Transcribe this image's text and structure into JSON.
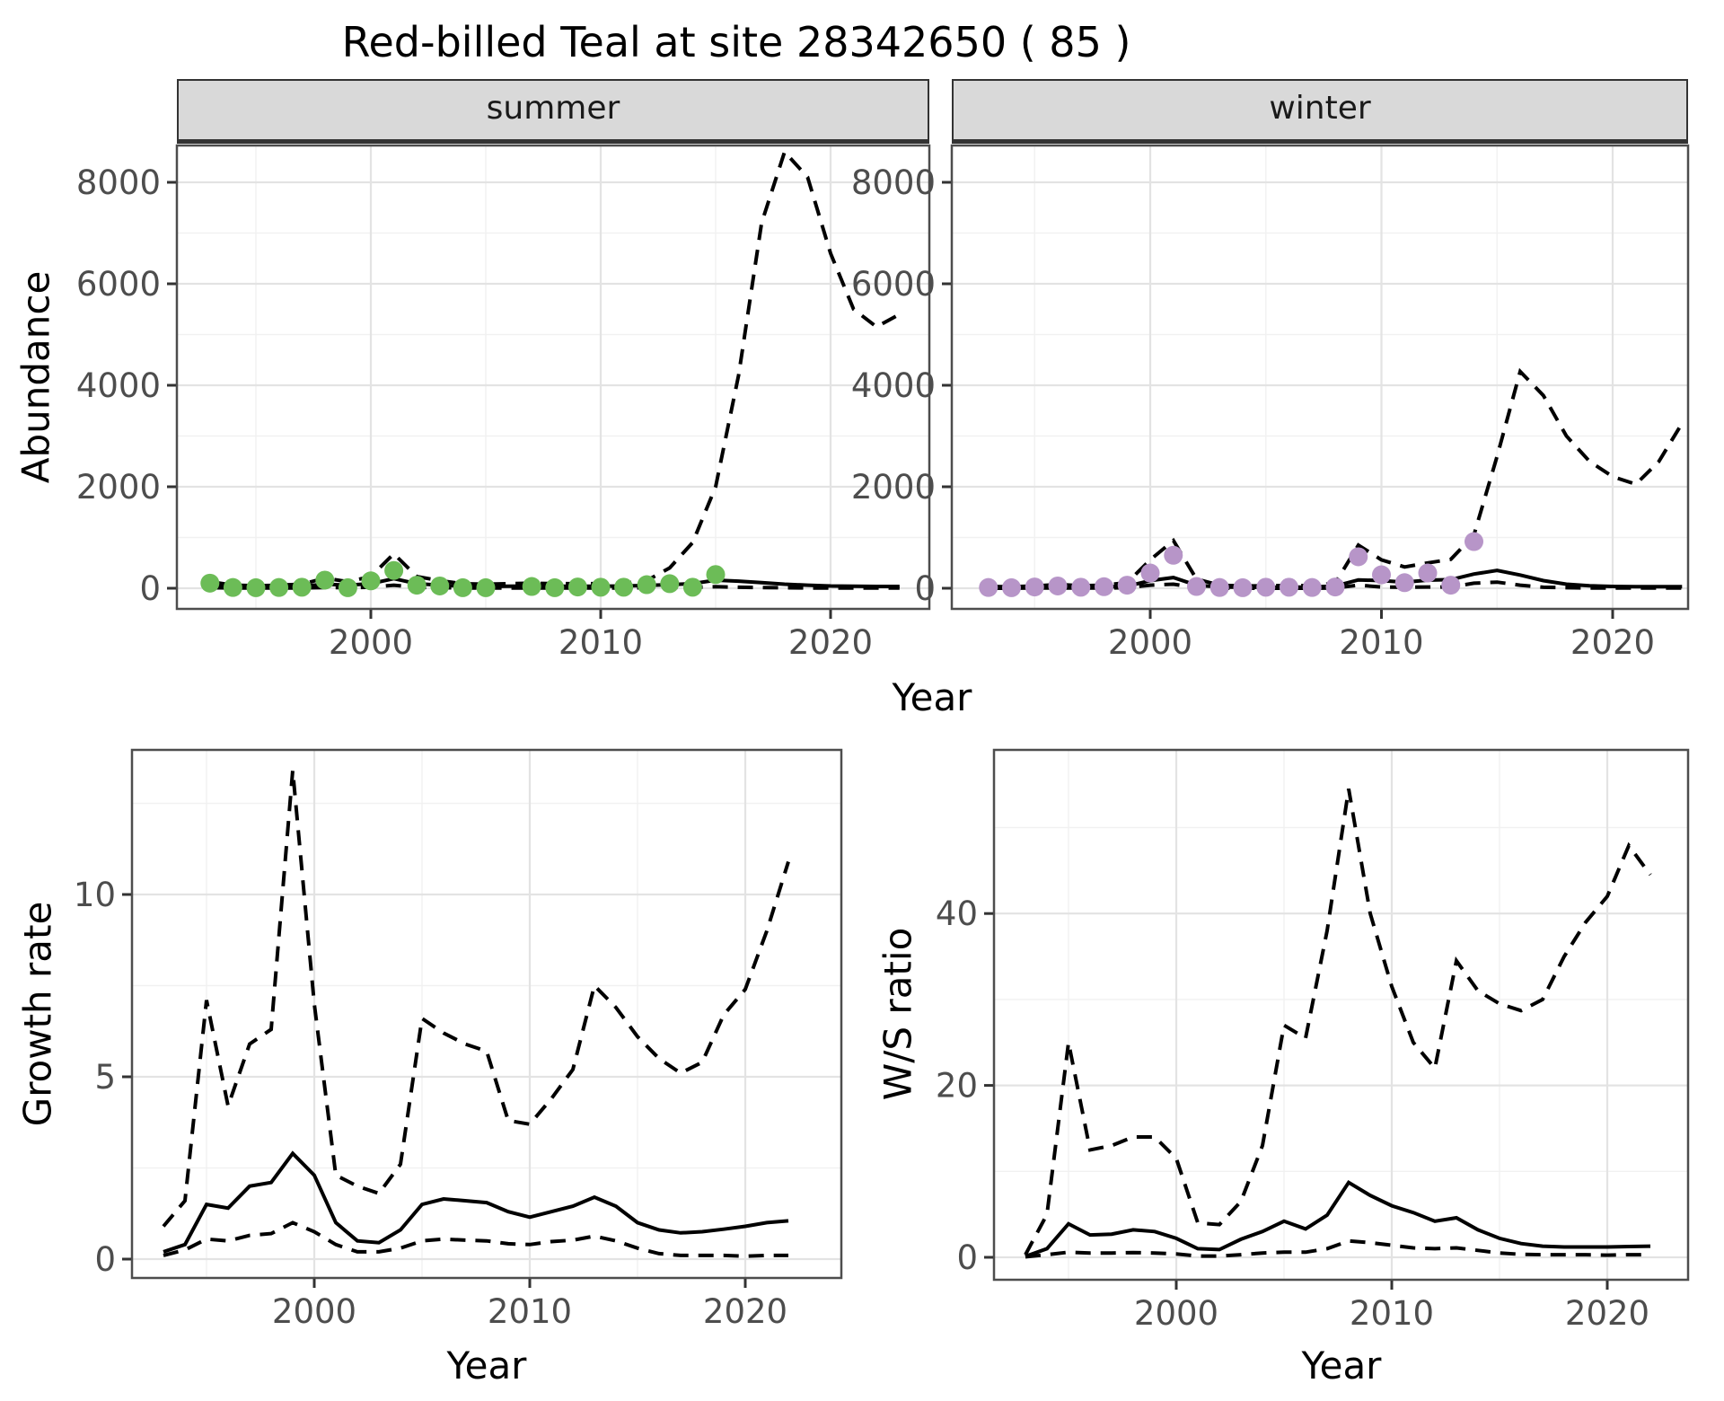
{
  "title": "Red-billed Teal at site 28342650 ( 85 )",
  "colors": {
    "summer_points": "#6CBC57",
    "winter_points": "#B795C8",
    "line": "#000000",
    "strip_bg": "#D9D9D9",
    "panel_border": "#4D4D4D",
    "grid_major": "#E3E3E3",
    "grid_minor": "#F1F1F1",
    "tick_label": "#4D4D4D"
  },
  "chart_data": [
    {
      "id": "abundance-summer",
      "type": "line",
      "facet_label": "summer",
      "xlabel": "Year",
      "ylabel": "Abundance",
      "x_ticks": [
        2000,
        2010,
        2020
      ],
      "y_ticks": [
        0,
        2000,
        4000,
        6000,
        8000
      ],
      "xlim": [
        1991.6,
        2024.3
      ],
      "ylim": [
        -400,
        8750
      ],
      "grid": true,
      "legend": "none",
      "series": [
        {
          "name": "upper-credible-interval",
          "style": "dashed",
          "x": [
            1993,
            1994,
            1995,
            1996,
            1997,
            1998,
            1999,
            2000,
            2001,
            2002,
            2003,
            2004,
            2005,
            2006,
            2007,
            2008,
            2009,
            2010,
            2011,
            2012,
            2013,
            2014,
            2015,
            2016,
            2017,
            2018,
            2019,
            2020,
            2021,
            2022,
            2023
          ],
          "y": [
            130,
            60,
            50,
            60,
            80,
            200,
            130,
            230,
            680,
            230,
            150,
            90,
            80,
            90,
            100,
            90,
            90,
            90,
            100,
            150,
            400,
            900,
            2000,
            4200,
            7200,
            8600,
            8100,
            6600,
            5500,
            5150,
            5400
          ]
        },
        {
          "name": "median-fit",
          "style": "solid",
          "x": [
            1993,
            1994,
            1995,
            1996,
            1997,
            1998,
            1999,
            2000,
            2001,
            2002,
            2003,
            2004,
            2005,
            2006,
            2007,
            2008,
            2009,
            2010,
            2011,
            2012,
            2013,
            2014,
            2015,
            2016,
            2017,
            2018,
            2019,
            2020,
            2021,
            2022,
            2023
          ],
          "y": [
            60,
            30,
            25,
            30,
            40,
            80,
            60,
            90,
            190,
            90,
            60,
            40,
            35,
            40,
            45,
            40,
            40,
            40,
            45,
            55,
            70,
            90,
            160,
            140,
            110,
            80,
            60,
            45,
            40,
            35,
            35
          ]
        },
        {
          "name": "lower-credible-interval",
          "style": "dashed",
          "x": [
            1993,
            1994,
            1995,
            1996,
            1997,
            1998,
            1999,
            2000,
            2001,
            2002,
            2003,
            2004,
            2005,
            2006,
            2007,
            2008,
            2009,
            2010,
            2011,
            2012,
            2013,
            2014,
            2015,
            2016,
            2017,
            2018,
            2019,
            2020,
            2021,
            2022,
            2023
          ],
          "y": [
            10,
            5,
            5,
            5,
            5,
            15,
            10,
            20,
            60,
            20,
            10,
            5,
            5,
            5,
            5,
            5,
            5,
            5,
            5,
            10,
            15,
            20,
            30,
            20,
            15,
            10,
            5,
            5,
            5,
            5,
            5
          ]
        },
        {
          "name": "observed-counts",
          "style": "points",
          "color": "#6CBC57",
          "x": [
            1993,
            1994,
            1995,
            1996,
            1997,
            1998,
            1999,
            2000,
            2001,
            2002,
            2003,
            2004,
            2005,
            2007,
            2008,
            2009,
            2010,
            2011,
            2012,
            2013,
            2014,
            2015
          ],
          "y": [
            100,
            15,
            10,
            15,
            20,
            160,
            10,
            145,
            350,
            60,
            45,
            10,
            10,
            35,
            10,
            25,
            20,
            20,
            70,
            90,
            20,
            270
          ]
        }
      ]
    },
    {
      "id": "abundance-winter",
      "type": "line",
      "facet_label": "winter",
      "xlabel": "Year",
      "ylabel": "Abundance",
      "x_ticks": [
        2000,
        2010,
        2020
      ],
      "y_ticks": [
        0,
        2000,
        4000,
        6000,
        8000
      ],
      "xlim": [
        1991.6,
        2024.3
      ],
      "ylim": [
        -400,
        8750
      ],
      "grid": true,
      "legend": "none",
      "series": [
        {
          "name": "upper-credible-interval",
          "style": "dashed",
          "x": [
            1993,
            1994,
            1995,
            1996,
            1997,
            1998,
            1999,
            2000,
            2001,
            2002,
            2003,
            2004,
            2005,
            2006,
            2007,
            2008,
            2009,
            2010,
            2011,
            2012,
            2013,
            2014,
            2015,
            2016,
            2017,
            2018,
            2019,
            2020,
            2021,
            2022,
            2023
          ],
          "y": [
            35,
            30,
            45,
            75,
            50,
            60,
            110,
            560,
            940,
            180,
            60,
            45,
            50,
            55,
            50,
            100,
            850,
            560,
            420,
            500,
            570,
            1050,
            2600,
            4270,
            3800,
            3000,
            2500,
            2200,
            2050,
            2500,
            3250
          ]
        },
        {
          "name": "median-fit",
          "style": "solid",
          "x": [
            1993,
            1994,
            1995,
            1996,
            1997,
            1998,
            1999,
            2000,
            2001,
            2002,
            2003,
            2004,
            2005,
            2006,
            2007,
            2008,
            2009,
            2010,
            2011,
            2012,
            2013,
            2014,
            2015,
            2016,
            2017,
            2018,
            2019,
            2020,
            2021,
            2022,
            2023
          ],
          "y": [
            10,
            10,
            15,
            20,
            20,
            25,
            40,
            150,
            210,
            60,
            25,
            20,
            20,
            20,
            25,
            45,
            165,
            150,
            120,
            160,
            170,
            280,
            350,
            260,
            150,
            80,
            50,
            35,
            30,
            30,
            30
          ]
        },
        {
          "name": "lower-credible-interval",
          "style": "dashed",
          "x": [
            1993,
            1994,
            1995,
            1996,
            1997,
            1998,
            1999,
            2000,
            2001,
            2002,
            2003,
            2004,
            2005,
            2006,
            2007,
            2008,
            2009,
            2010,
            2011,
            2012,
            2013,
            2014,
            2015,
            2016,
            2017,
            2018,
            2019,
            2020,
            2021,
            2022,
            2023
          ],
          "y": [
            0,
            0,
            5,
            5,
            5,
            5,
            10,
            60,
            80,
            10,
            0,
            0,
            0,
            0,
            0,
            5,
            60,
            25,
            20,
            25,
            25,
            100,
            120,
            60,
            20,
            10,
            5,
            5,
            5,
            5,
            5
          ]
        },
        {
          "name": "observed-counts",
          "style": "points",
          "color": "#B795C8",
          "x": [
            1993,
            1994,
            1995,
            1996,
            1997,
            1998,
            1999,
            2000,
            2001,
            2002,
            2003,
            2004,
            2005,
            2006,
            2007,
            2008,
            2009,
            2010,
            2011,
            2012,
            2013,
            2014
          ],
          "y": [
            15,
            10,
            25,
            45,
            20,
            30,
            60,
            300,
            650,
            35,
            15,
            10,
            20,
            20,
            15,
            25,
            620,
            265,
            110,
            300,
            60,
            920
          ]
        }
      ]
    },
    {
      "id": "growth-rate",
      "type": "line",
      "facet_label": "",
      "xlabel": "Year",
      "ylabel": "Growth rate",
      "x_ticks": [
        2000,
        2010,
        2020
      ],
      "y_ticks": [
        0,
        5,
        10
      ],
      "xlim": [
        1991.5,
        2024.5
      ],
      "ylim": [
        -0.5,
        14.0
      ],
      "grid": true,
      "legend": "none",
      "series": [
        {
          "name": "upper-credible-interval",
          "style": "dashed",
          "x": [
            1993,
            1994,
            1995,
            1996,
            1997,
            1998,
            1999,
            2000,
            2001,
            2002,
            2003,
            2004,
            2005,
            2006,
            2007,
            2008,
            2009,
            2010,
            2011,
            2012,
            2013,
            2014,
            2015,
            2016,
            2017,
            2018,
            2019,
            2020,
            2021,
            2022
          ],
          "y": [
            0.9,
            1.6,
            7.1,
            4.2,
            5.9,
            6.3,
            13.4,
            7.0,
            2.3,
            2.0,
            1.8,
            2.6,
            6.6,
            6.2,
            5.9,
            5.7,
            3.8,
            3.7,
            4.4,
            5.2,
            7.5,
            6.9,
            6.1,
            5.5,
            5.1,
            5.4,
            6.7,
            7.4,
            9.0,
            10.9
          ]
        },
        {
          "name": "median-fit",
          "style": "solid",
          "x": [
            1993,
            1994,
            1995,
            1996,
            1997,
            1998,
            1999,
            2000,
            2001,
            2002,
            2003,
            2004,
            2005,
            2006,
            2007,
            2008,
            2009,
            2010,
            2011,
            2012,
            2013,
            2014,
            2015,
            2016,
            2017,
            2018,
            2019,
            2020,
            2021,
            2022
          ],
          "y": [
            0.2,
            0.4,
            1.5,
            1.4,
            2.0,
            2.1,
            2.9,
            2.3,
            1.0,
            0.5,
            0.45,
            0.8,
            1.5,
            1.65,
            1.6,
            1.55,
            1.3,
            1.15,
            1.3,
            1.45,
            1.7,
            1.45,
            1.0,
            0.8,
            0.72,
            0.75,
            0.82,
            0.9,
            1.0,
            1.05
          ]
        },
        {
          "name": "lower-credible-interval",
          "style": "dashed",
          "x": [
            1993,
            1994,
            1995,
            1996,
            1997,
            1998,
            1999,
            2000,
            2001,
            2002,
            2003,
            2004,
            2005,
            2006,
            2007,
            2008,
            2009,
            2010,
            2011,
            2012,
            2013,
            2014,
            2015,
            2016,
            2017,
            2018,
            2019,
            2020,
            2021,
            2022
          ],
          "y": [
            0.1,
            0.25,
            0.55,
            0.5,
            0.65,
            0.7,
            1.0,
            0.75,
            0.4,
            0.2,
            0.2,
            0.3,
            0.5,
            0.55,
            0.52,
            0.5,
            0.42,
            0.4,
            0.48,
            0.52,
            0.63,
            0.5,
            0.3,
            0.15,
            0.1,
            0.1,
            0.1,
            0.08,
            0.1,
            0.1
          ]
        }
      ]
    },
    {
      "id": "ws-ratio",
      "type": "line",
      "facet_label": "",
      "xlabel": "Year",
      "ylabel": "W/S ratio",
      "x_ticks": [
        2000,
        2010,
        2020
      ],
      "y_ticks": [
        0,
        20,
        40
      ],
      "xlim": [
        1991.5,
        2024.5
      ],
      "ylim": [
        -2,
        59
      ],
      "grid": true,
      "legend": "none",
      "series": [
        {
          "name": "upper-credible-interval",
          "style": "dashed",
          "x": [
            1993,
            1994,
            1995,
            1996,
            1997,
            1998,
            1999,
            2000,
            2001,
            2002,
            2003,
            2004,
            2005,
            2006,
            2007,
            2008,
            2009,
            2010,
            2011,
            2012,
            2013,
            2014,
            2015,
            2016,
            2017,
            2018,
            2019,
            2020,
            2021,
            2022
          ],
          "y": [
            0.3,
            5,
            25,
            12.5,
            13,
            14,
            14,
            11.5,
            4,
            3.8,
            6.5,
            13,
            27,
            25.5,
            38,
            54.5,
            40,
            31.5,
            25,
            22,
            34.5,
            31,
            29.5,
            28.7,
            30,
            35,
            39,
            42,
            47.9,
            44.5
          ]
        },
        {
          "name": "median-fit",
          "style": "solid",
          "x": [
            1993,
            1994,
            1995,
            1996,
            1997,
            1998,
            1999,
            2000,
            2001,
            2002,
            2003,
            2004,
            2005,
            2006,
            2007,
            2008,
            2009,
            2010,
            2011,
            2012,
            2013,
            2014,
            2015,
            2016,
            2017,
            2018,
            2019,
            2020,
            2021,
            2022
          ],
          "y": [
            0.1,
            1.0,
            3.9,
            2.6,
            2.7,
            3.2,
            3.0,
            2.2,
            1.0,
            0.9,
            2.1,
            3.0,
            4.2,
            3.3,
            4.9,
            8.7,
            7.2,
            6.0,
            5.2,
            4.2,
            4.6,
            3.2,
            2.2,
            1.6,
            1.3,
            1.2,
            1.2,
            1.2,
            1.25,
            1.3
          ]
        },
        {
          "name": "lower-credible-interval",
          "style": "dashed",
          "x": [
            1993,
            1994,
            1995,
            1996,
            1997,
            1998,
            1999,
            2000,
            2001,
            2002,
            2003,
            2004,
            2005,
            2006,
            2007,
            2008,
            2009,
            2010,
            2011,
            2012,
            2013,
            2014,
            2015,
            2016,
            2017,
            2018,
            2019,
            2020,
            2021,
            2022
          ],
          "y": [
            0.05,
            0.3,
            0.6,
            0.5,
            0.5,
            0.55,
            0.5,
            0.4,
            0.15,
            0.15,
            0.3,
            0.5,
            0.6,
            0.6,
            1.0,
            1.9,
            1.7,
            1.4,
            1.1,
            1.0,
            1.1,
            0.8,
            0.5,
            0.35,
            0.3,
            0.3,
            0.3,
            0.25,
            0.3,
            0.3
          ]
        }
      ]
    }
  ]
}
